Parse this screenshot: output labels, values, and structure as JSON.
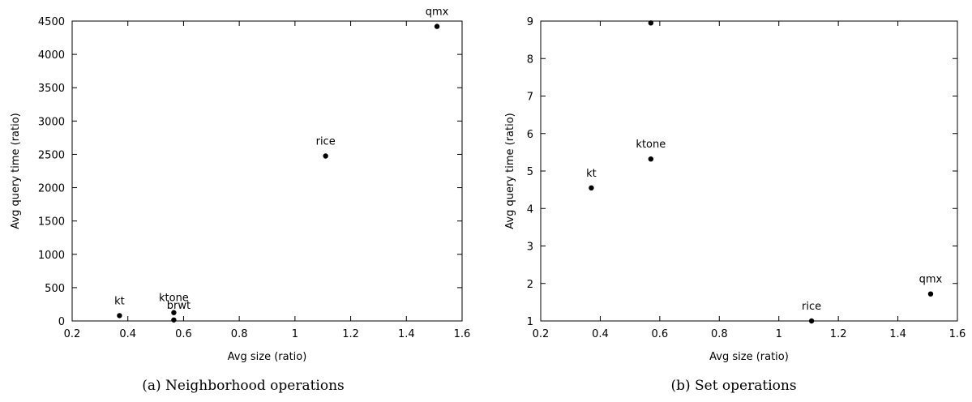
{
  "chart_data": [
    {
      "type": "scatter",
      "caption": "(a) Neighborhood operations",
      "xlabel": "Avg size (ratio)",
      "ylabel": "Avg query time (ratio)",
      "xlim": [
        0.2,
        1.6
      ],
      "ylim": [
        0,
        4500
      ],
      "xticks": [
        0.2,
        0.4,
        0.6,
        0.8,
        1,
        1.2,
        1.4,
        1.6
      ],
      "yticks": [
        0,
        500,
        1000,
        1500,
        2000,
        2500,
        3000,
        3500,
        4000,
        4500
      ],
      "grid": false,
      "points": [
        {
          "label": "kt",
          "x": 0.37,
          "y": 80
        },
        {
          "label": "ktone",
          "x": 0.565,
          "y": 125
        },
        {
          "label": "brwt",
          "x": 0.565,
          "y": 15
        },
        {
          "label": "rice",
          "x": 1.11,
          "y": 2475
        },
        {
          "label": "qmx",
          "x": 1.51,
          "y": 4420
        }
      ]
    },
    {
      "type": "scatter",
      "caption": "(b) Set operations",
      "xlabel": "Avg size (ratio)",
      "ylabel": "Avg query time (ratio)",
      "xlim": [
        0.2,
        1.6
      ],
      "ylim": [
        1,
        9
      ],
      "xticks": [
        0.2,
        0.4,
        0.6,
        0.8,
        1,
        1.2,
        1.4,
        1.6
      ],
      "yticks": [
        1,
        2,
        3,
        4,
        5,
        6,
        7,
        8,
        9
      ],
      "grid": false,
      "points": [
        {
          "label": "kt",
          "x": 0.37,
          "y": 4.55
        },
        {
          "label": "ktone",
          "x": 0.57,
          "y": 5.32
        },
        {
          "label": "",
          "x": 0.57,
          "y": 8.95
        },
        {
          "label": "rice",
          "x": 1.11,
          "y": 1.0
        },
        {
          "label": "qmx",
          "x": 1.51,
          "y": 1.72
        }
      ]
    }
  ]
}
